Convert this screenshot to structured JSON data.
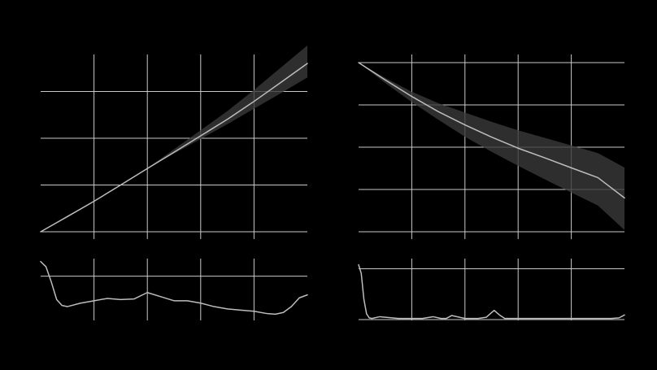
{
  "colors": {
    "background": "#000000",
    "grid": "#c8c8c8",
    "line": "#bdbdbd",
    "band": "#3a3a3a",
    "band_opacity": 0.8
  },
  "chart_data": [
    {
      "type": "area",
      "panel": "top-left",
      "title": "",
      "xlabel": "",
      "ylabel": "",
      "grid": true,
      "xlim": [
        0,
        1
      ],
      "ylim": [
        0,
        1
      ],
      "xgrid": [
        0.2,
        0.4,
        0.6,
        0.8
      ],
      "ygrid": [
        0,
        0.25,
        0.5,
        0.75
      ],
      "x": [
        0,
        0.1,
        0.2,
        0.3,
        0.4,
        0.5,
        0.6,
        0.7,
        0.8,
        0.9,
        1.0
      ],
      "series": [
        {
          "role": "mean",
          "values": [
            0.0,
            0.081,
            0.163,
            0.25,
            0.338,
            0.425,
            0.513,
            0.601,
            0.697,
            0.798,
            0.9
          ]
        },
        {
          "role": "lower",
          "values": [
            0.0,
            0.087,
            0.164,
            0.25,
            0.338,
            0.418,
            0.496,
            0.575,
            0.658,
            0.74,
            0.825
          ]
        },
        {
          "role": "upper",
          "values": [
            0.0,
            0.076,
            0.16,
            0.25,
            0.34,
            0.441,
            0.543,
            0.645,
            0.758,
            0.877,
            0.996
          ]
        }
      ]
    },
    {
      "type": "area",
      "panel": "top-right",
      "title": "",
      "xlabel": "",
      "ylabel": "",
      "grid": true,
      "xlim": [
        0,
        1
      ],
      "ylim": [
        0,
        1
      ],
      "xgrid": [
        0.2,
        0.4,
        0.6,
        0.8
      ],
      "ygrid": [
        0,
        0.25,
        0.5,
        0.75,
        1.0
      ],
      "x": [
        0,
        0.1,
        0.2,
        0.3,
        0.4,
        0.5,
        0.6,
        0.7,
        0.8,
        0.9,
        1.0
      ],
      "series": [
        {
          "role": "mean",
          "values": [
            1.0,
            0.898,
            0.8,
            0.71,
            0.632,
            0.56,
            0.494,
            0.437,
            0.378,
            0.32,
            0.2
          ]
        },
        {
          "role": "lower",
          "values": [
            1.0,
            0.88,
            0.767,
            0.662,
            0.562,
            0.473,
            0.39,
            0.31,
            0.232,
            0.155,
            0.01
          ]
        },
        {
          "role": "upper",
          "values": [
            1.0,
            0.91,
            0.828,
            0.76,
            0.705,
            0.65,
            0.6,
            0.555,
            0.51,
            0.465,
            0.38
          ]
        }
      ]
    },
    {
      "type": "line",
      "panel": "bottom-left",
      "title": "",
      "xlabel": "",
      "ylabel": "",
      "grid": true,
      "xlim": [
        0,
        1
      ],
      "ylim": [
        0,
        1
      ],
      "xgrid": [
        0.2,
        0.4,
        0.6,
        0.8
      ],
      "ygrid": [
        0.7
      ],
      "x": [
        0,
        0.02,
        0.04,
        0.06,
        0.08,
        0.1,
        0.15,
        0.2,
        0.25,
        0.3,
        0.35,
        0.4,
        0.45,
        0.5,
        0.55,
        0.6,
        0.65,
        0.7,
        0.75,
        0.8,
        0.85,
        0.88,
        0.91,
        0.94,
        0.97,
        1.0
      ],
      "series": [
        {
          "role": "line",
          "values": [
            0.95,
            0.86,
            0.6,
            0.3,
            0.2,
            0.18,
            0.24,
            0.28,
            0.32,
            0.3,
            0.31,
            0.42,
            0.35,
            0.28,
            0.28,
            0.24,
            0.18,
            0.14,
            0.12,
            0.1,
            0.06,
            0.05,
            0.08,
            0.18,
            0.33,
            0.38
          ]
        }
      ]
    },
    {
      "type": "line",
      "panel": "bottom-right",
      "title": "",
      "xlabel": "",
      "ylabel": "",
      "grid": true,
      "xlim": [
        0,
        1
      ],
      "ylim": [
        0,
        1
      ],
      "xgrid": [
        0.2,
        0.4,
        0.6,
        0.8
      ],
      "ygrid": [
        0,
        0.88
      ],
      "x": [
        0,
        0.01,
        0.02,
        0.03,
        0.04,
        0.05,
        0.08,
        0.15,
        0.24,
        0.28,
        0.31,
        0.33,
        0.35,
        0.4,
        0.45,
        0.48,
        0.5,
        0.51,
        0.53,
        0.55,
        0.6,
        0.7,
        0.8,
        0.9,
        0.95,
        0.98,
        1.0
      ],
      "series": [
        {
          "role": "line",
          "values": [
            0.95,
            0.8,
            0.35,
            0.1,
            0.03,
            0.02,
            0.05,
            0.02,
            0.02,
            0.05,
            0.02,
            0.02,
            0.07,
            0.02,
            0.02,
            0.04,
            0.12,
            0.16,
            0.08,
            0.02,
            0.02,
            0.02,
            0.02,
            0.02,
            0.02,
            0.03,
            0.08
          ]
        }
      ]
    }
  ]
}
